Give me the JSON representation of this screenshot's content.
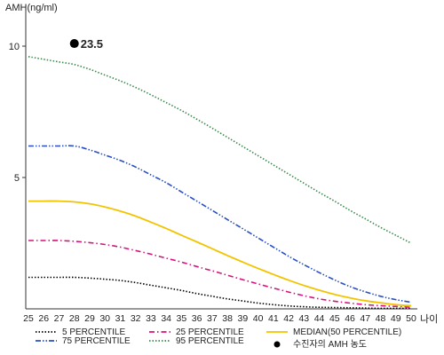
{
  "chart_data": {
    "type": "line",
    "title": "",
    "ylabel": "AMH(ng/ml)",
    "xlabel": "나이",
    "xlim": [
      25,
      50
    ],
    "ylim": [
      0,
      11
    ],
    "x": [
      25,
      26,
      27,
      28,
      29,
      30,
      31,
      32,
      33,
      34,
      35,
      36,
      37,
      38,
      39,
      40,
      41,
      42,
      43,
      44,
      45,
      46,
      47,
      48,
      49,
      50
    ],
    "yticks": [
      5,
      10
    ],
    "grid": false,
    "legend_position": "bottom",
    "series": [
      {
        "name": "5 PERCENTILE",
        "color": "#000000",
        "style": "dotted",
        "values": [
          1.2,
          1.2,
          1.2,
          1.2,
          1.17,
          1.13,
          1.08,
          1.0,
          0.9,
          0.8,
          0.7,
          0.58,
          0.48,
          0.38,
          0.3,
          0.22,
          0.16,
          0.11,
          0.08,
          0.06,
          0.05,
          0.04,
          0.03,
          0.02,
          0.02,
          0.02
        ]
      },
      {
        "name": "25 PERCENTILE",
        "color": "#d6127e",
        "style": "dashdot",
        "values": [
          2.6,
          2.6,
          2.6,
          2.57,
          2.52,
          2.45,
          2.35,
          2.22,
          2.08,
          1.93,
          1.78,
          1.61,
          1.45,
          1.28,
          1.11,
          0.95,
          0.79,
          0.64,
          0.5,
          0.38,
          0.29,
          0.22,
          0.16,
          0.12,
          0.09,
          0.06
        ]
      },
      {
        "name": "MEDIAN(50 PERCENTILE)",
        "color": "#f2c400",
        "style": "solid",
        "values": [
          4.1,
          4.1,
          4.1,
          4.07,
          4.0,
          3.88,
          3.72,
          3.53,
          3.3,
          3.06,
          2.8,
          2.55,
          2.29,
          2.03,
          1.78,
          1.54,
          1.31,
          1.09,
          0.89,
          0.71,
          0.55,
          0.42,
          0.31,
          0.23,
          0.16,
          0.12
        ]
      },
      {
        "name": "75 PERCENTILE",
        "color": "#2a4fc4",
        "style": "dashdotdot",
        "values": [
          6.2,
          6.2,
          6.2,
          6.2,
          6.05,
          5.85,
          5.65,
          5.4,
          5.1,
          4.8,
          4.45,
          4.1,
          3.75,
          3.4,
          3.05,
          2.7,
          2.35,
          2.0,
          1.68,
          1.38,
          1.1,
          0.85,
          0.65,
          0.48,
          0.35,
          0.25
        ]
      },
      {
        "name": "95 PERCENTILE",
        "color": "#3a8a4a",
        "style": "dotted",
        "values": [
          9.6,
          9.5,
          9.4,
          9.3,
          9.12,
          8.9,
          8.68,
          8.43,
          8.15,
          7.85,
          7.55,
          7.22,
          6.88,
          6.53,
          6.18,
          5.83,
          5.48,
          5.13,
          4.78,
          4.43,
          4.1,
          3.75,
          3.43,
          3.1,
          2.8,
          2.5
        ]
      }
    ],
    "marker": {
      "name": "수진자의 AMH 농도",
      "x": 28,
      "y": 10.1,
      "label": "23.5",
      "color": "#000000"
    }
  }
}
